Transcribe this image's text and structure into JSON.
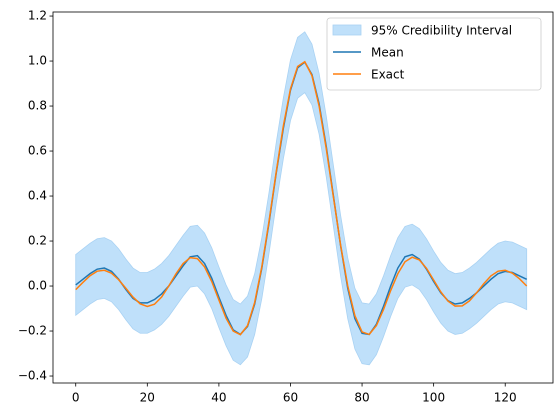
{
  "chart_data": {
    "type": "line",
    "x": [
      0,
      2,
      4,
      6,
      8,
      10,
      12,
      14,
      16,
      18,
      20,
      22,
      24,
      26,
      28,
      30,
      32,
      34,
      36,
      38,
      40,
      42,
      44,
      46,
      48,
      50,
      52,
      54,
      56,
      58,
      60,
      62,
      64,
      66,
      68,
      70,
      72,
      74,
      76,
      78,
      80,
      82,
      84,
      86,
      88,
      90,
      92,
      94,
      96,
      98,
      100,
      102,
      104,
      106,
      108,
      110,
      112,
      114,
      116,
      118,
      120,
      122,
      124,
      126
    ],
    "series": [
      {
        "name": "95% Credibility Interval",
        "color": "#bfe0fa",
        "lower": [
          -0.13,
          -0.105,
          -0.08,
          -0.06,
          -0.055,
          -0.07,
          -0.105,
          -0.15,
          -0.19,
          -0.21,
          -0.21,
          -0.195,
          -0.17,
          -0.135,
          -0.09,
          -0.045,
          -0.005,
          0,
          -0.035,
          -0.1,
          -0.185,
          -0.265,
          -0.33,
          -0.35,
          -0.315,
          -0.215,
          -0.055,
          0.145,
          0.365,
          0.565,
          0.735,
          0.835,
          0.86,
          0.805,
          0.675,
          0.485,
          0.265,
          0.045,
          -0.145,
          -0.28,
          -0.345,
          -0.35,
          -0.305,
          -0.225,
          -0.135,
          -0.055,
          -0.005,
          0.005,
          -0.015,
          -0.06,
          -0.115,
          -0.165,
          -0.2,
          -0.215,
          -0.21,
          -0.19,
          -0.165,
          -0.135,
          -0.105,
          -0.08,
          -0.07,
          -0.075,
          -0.09,
          -0.105
        ],
        "upper": [
          0.14,
          0.165,
          0.19,
          0.21,
          0.215,
          0.2,
          0.165,
          0.12,
          0.08,
          0.06,
          0.06,
          0.075,
          0.1,
          0.135,
          0.18,
          0.225,
          0.265,
          0.27,
          0.235,
          0.17,
          0.085,
          0.005,
          -0.06,
          -0.08,
          -0.045,
          0.055,
          0.215,
          0.415,
          0.635,
          0.835,
          1.005,
          1.105,
          1.13,
          1.075,
          0.945,
          0.755,
          0.535,
          0.315,
          0.125,
          -0.01,
          -0.075,
          -0.08,
          -0.035,
          0.045,
          0.135,
          0.215,
          0.265,
          0.275,
          0.255,
          0.21,
          0.155,
          0.105,
          0.07,
          0.055,
          0.06,
          0.08,
          0.105,
          0.135,
          0.165,
          0.19,
          0.2,
          0.195,
          0.18,
          0.165
        ]
      },
      {
        "name": "Mean",
        "color": "#1f77b4",
        "values": [
          0.005,
          0.03,
          0.055,
          0.075,
          0.08,
          0.065,
          0.03,
          -0.015,
          -0.055,
          -0.075,
          -0.075,
          -0.06,
          -0.035,
          0,
          0.045,
          0.09,
          0.13,
          0.135,
          0.1,
          0.035,
          -0.05,
          -0.13,
          -0.195,
          -0.215,
          -0.18,
          -0.08,
          0.08,
          0.28,
          0.5,
          0.7,
          0.87,
          0.97,
          0.995,
          0.94,
          0.81,
          0.62,
          0.4,
          0.18,
          -0.01,
          -0.145,
          -0.21,
          -0.215,
          -0.17,
          -0.09,
          0,
          0.08,
          0.13,
          0.14,
          0.12,
          0.075,
          0.02,
          -0.03,
          -0.065,
          -0.08,
          -0.075,
          -0.055,
          -0.03,
          0,
          0.03,
          0.055,
          0.065,
          0.06,
          0.045,
          0.03
        ]
      },
      {
        "name": "Exact",
        "color": "#ff7f0e",
        "values": [
          -0.016,
          0.016,
          0.046,
          0.066,
          0.07,
          0.057,
          0.028,
          -0.01,
          -0.049,
          -0.079,
          -0.091,
          -0.081,
          -0.049,
          0,
          0.054,
          0.1,
          0.126,
          0.122,
          0.085,
          0.02,
          -0.062,
          -0.143,
          -0.2,
          -0.216,
          -0.176,
          -0.073,
          0.086,
          0.287,
          0.505,
          0.711,
          0.876,
          0.976,
          0.997,
          0.935,
          0.8,
          0.611,
          0.395,
          0.183,
          0,
          -0.132,
          -0.204,
          -0.215,
          -0.176,
          -0.104,
          -0.02,
          0.055,
          0.108,
          0.128,
          0.116,
          0.079,
          0.027,
          -0.026,
          -0.067,
          -0.089,
          -0.088,
          -0.066,
          -0.03,
          0.01,
          0.045,
          0.066,
          0.07,
          0.057,
          0.032,
          0
        ]
      }
    ],
    "xlim": [
      -6.35,
      133.35
    ],
    "ylim": [
      -0.431,
      1.218
    ],
    "xticks": [
      0,
      20,
      40,
      60,
      80,
      100,
      120
    ],
    "yticks": [
      {
        "value": -0.4,
        "label": "−0.4"
      },
      {
        "value": -0.2,
        "label": "−0.2"
      },
      {
        "value": 0,
        "label": "0.0"
      },
      0.2,
      0.4,
      0.6,
      0.8,
      {
        "value": 1,
        "label": "1.0"
      },
      1.2
    ],
    "legend": "upper right"
  }
}
